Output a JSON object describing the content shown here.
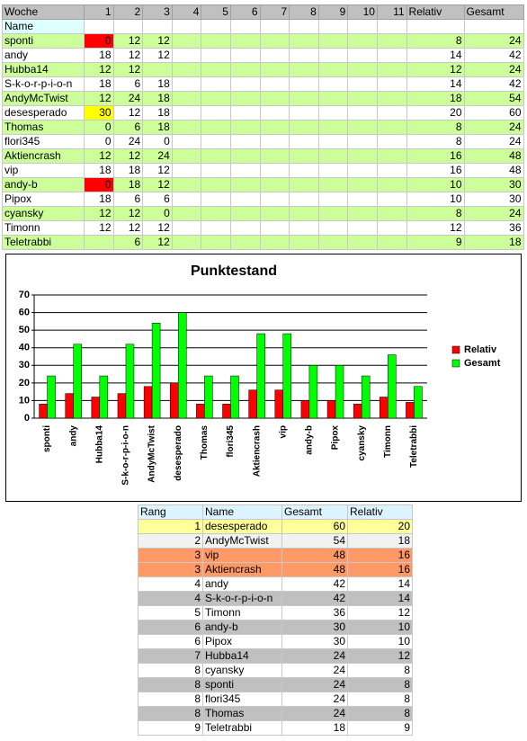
{
  "woche_table": {
    "header": [
      "Woche",
      "1",
      "2",
      "3",
      "4",
      "5",
      "6",
      "7",
      "8",
      "9",
      "10",
      "11",
      "Relativ",
      "Gesamt"
    ],
    "subheader": "Name",
    "rows": [
      {
        "name": "sponti",
        "weeks": [
          0,
          12,
          12
        ],
        "relativ": 8,
        "gesamt": 24,
        "highlight": "#ff0000"
      },
      {
        "name": "andy",
        "weeks": [
          18,
          12,
          12
        ],
        "relativ": 14,
        "gesamt": 42
      },
      {
        "name": "Hubba14",
        "weeks": [
          12,
          12,
          null
        ],
        "relativ": 12,
        "gesamt": 24
      },
      {
        "name": "S-k-o-r-p-i-o-n",
        "weeks": [
          18,
          6,
          18
        ],
        "relativ": 14,
        "gesamt": 42
      },
      {
        "name": "AndyMcTwist",
        "weeks": [
          12,
          24,
          18
        ],
        "relativ": 18,
        "gesamt": 54
      },
      {
        "name": "desesperado",
        "weeks": [
          30,
          12,
          18
        ],
        "relativ": 20,
        "gesamt": 60,
        "highlight": "#ffff00"
      },
      {
        "name": "Thomas",
        "weeks": [
          0,
          6,
          18
        ],
        "relativ": 8,
        "gesamt": 24
      },
      {
        "name": "flori345",
        "weeks": [
          0,
          24,
          0
        ],
        "relativ": 8,
        "gesamt": 24
      },
      {
        "name": "Aktiencrash",
        "weeks": [
          12,
          12,
          24
        ],
        "relativ": 16,
        "gesamt": 48
      },
      {
        "name": "vip",
        "weeks": [
          18,
          18,
          12
        ],
        "relativ": 16,
        "gesamt": 48
      },
      {
        "name": "andy-b",
        "weeks": [
          0,
          18,
          12
        ],
        "relativ": 10,
        "gesamt": 30,
        "highlight": "#ff0000"
      },
      {
        "name": "Pipox",
        "weeks": [
          18,
          6,
          6
        ],
        "relativ": 10,
        "gesamt": 30
      },
      {
        "name": "cyansky",
        "weeks": [
          12,
          12,
          0
        ],
        "relativ": 8,
        "gesamt": 24
      },
      {
        "name": "Timonn",
        "weeks": [
          12,
          12,
          12
        ],
        "relativ": 12,
        "gesamt": 36
      },
      {
        "name": "Teletrabbi",
        "weeks": [
          null,
          6,
          12
        ],
        "relativ": 9,
        "gesamt": 18
      }
    ]
  },
  "chart_data": {
    "type": "bar",
    "title": "Punktestand",
    "categories": [
      "sponti",
      "andy",
      "Hubba14",
      "S-k-o-r-p-i-o-n",
      "AndyMcTwist",
      "desesperado",
      "Thomas",
      "flori345",
      "Aktiencrash",
      "vip",
      "andy-b",
      "Pipox",
      "cyansky",
      "Timonn",
      "Teletrabbi"
    ],
    "series": [
      {
        "name": "Relativ",
        "color": "#ff0000",
        "values": [
          8,
          14,
          12,
          14,
          18,
          20,
          8,
          8,
          16,
          16,
          10,
          10,
          8,
          12,
          9
        ]
      },
      {
        "name": "Gesamt",
        "color": "#00ff00",
        "values": [
          24,
          42,
          24,
          42,
          54,
          60,
          24,
          24,
          48,
          48,
          30,
          30,
          24,
          36,
          18
        ]
      }
    ],
    "ylim": [
      0,
      70
    ],
    "yticks": [
      0,
      10,
      20,
      30,
      40,
      50,
      60,
      70
    ],
    "grid": true,
    "legend": "right"
  },
  "rank_table": {
    "header": [
      "Rang",
      "Name",
      "Gesamt",
      "Relativ"
    ],
    "rows": [
      {
        "rang": 1,
        "name": "desesperado",
        "gesamt": 60,
        "relativ": 20,
        "color": "#ffff99"
      },
      {
        "rang": 2,
        "name": "AndyMcTwist",
        "gesamt": 54,
        "relativ": 18,
        "color": "#f2f2f2"
      },
      {
        "rang": 3,
        "name": "vip",
        "gesamt": 48,
        "relativ": 16,
        "color": "#ff9966"
      },
      {
        "rang": 3,
        "name": "Aktiencrash",
        "gesamt": 48,
        "relativ": 16,
        "color": "#ff9966"
      },
      {
        "rang": 4,
        "name": "andy",
        "gesamt": 42,
        "relativ": 14,
        "color": "#ffffff"
      },
      {
        "rang": 4,
        "name": "S-k-o-r-p-i-o-n",
        "gesamt": 42,
        "relativ": 14,
        "color": "#c0c0c0"
      },
      {
        "rang": 5,
        "name": "Timonn",
        "gesamt": 36,
        "relativ": 12,
        "color": "#ffffff"
      },
      {
        "rang": 6,
        "name": "andy-b",
        "gesamt": 30,
        "relativ": 10,
        "color": "#c0c0c0"
      },
      {
        "rang": 6,
        "name": "Pipox",
        "gesamt": 30,
        "relativ": 10,
        "color": "#ffffff"
      },
      {
        "rang": 7,
        "name": "Hubba14",
        "gesamt": 24,
        "relativ": 12,
        "color": "#c0c0c0"
      },
      {
        "rang": 8,
        "name": "cyansky",
        "gesamt": 24,
        "relativ": 8,
        "color": "#ffffff"
      },
      {
        "rang": 8,
        "name": "sponti",
        "gesamt": 24,
        "relativ": 8,
        "color": "#c0c0c0"
      },
      {
        "rang": 8,
        "name": "flori345",
        "gesamt": 24,
        "relativ": 8,
        "color": "#ffffff"
      },
      {
        "rang": 8,
        "name": "Thomas",
        "gesamt": 24,
        "relativ": 8,
        "color": "#c0c0c0"
      },
      {
        "rang": 9,
        "name": "Teletrabbi",
        "gesamt": 18,
        "relativ": 9,
        "color": "#ffffff"
      }
    ]
  }
}
